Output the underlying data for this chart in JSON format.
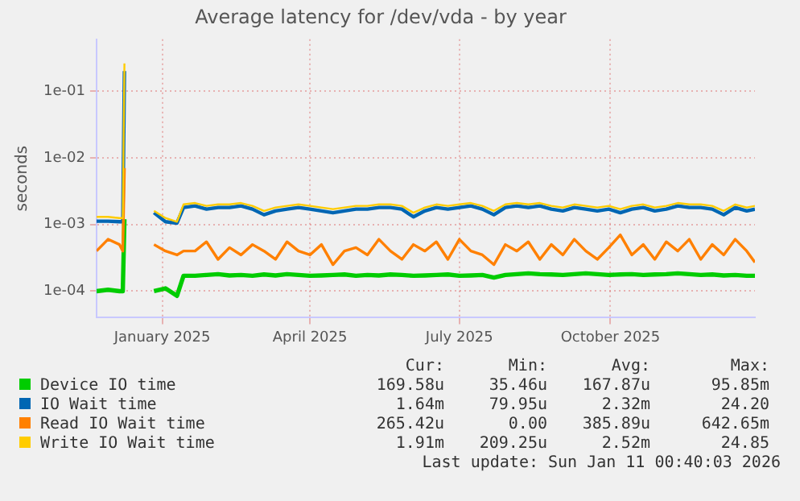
{
  "chart_data": {
    "type": "line",
    "title": "Average latency for /dev/vda - by year",
    "ylabel": "seconds",
    "log": true,
    "grid": true,
    "legend": "bottom",
    "marker": "none",
    "line_style": "solid",
    "xlim": [
      "2024-11-22",
      "2025-12-28"
    ],
    "xticks": [
      {
        "value": "2025-01-01",
        "label": "January 2025"
      },
      {
        "value": "2025-04-01",
        "label": "April 2025"
      },
      {
        "value": "2025-07-01",
        "label": "July 2025"
      },
      {
        "value": "2025-10-01",
        "label": "October 2025"
      }
    ],
    "ylim": [
      4e-05,
      0.6
    ],
    "yticks": [
      {
        "value": 0.0001,
        "label": "1e-04"
      },
      {
        "value": 0.001,
        "label": "1e-03"
      },
      {
        "value": 0.01,
        "label": "1e-02"
      },
      {
        "value": 0.1,
        "label": "1e-01"
      }
    ],
    "x": [
      "2024-11-22",
      "2024-11-29",
      "2024-12-06",
      "2024-12-08",
      "2024-12-09",
      "2024-12-18",
      "2024-12-27",
      "2025-01-03",
      "2025-01-10",
      "2025-01-14",
      "2025-01-21",
      "2025-01-28",
      "2025-02-04",
      "2025-02-11",
      "2025-02-18",
      "2025-02-25",
      "2025-03-04",
      "2025-03-11",
      "2025-03-18",
      "2025-03-25",
      "2025-04-01",
      "2025-04-08",
      "2025-04-15",
      "2025-04-22",
      "2025-04-29",
      "2025-05-06",
      "2025-05-13",
      "2025-05-20",
      "2025-05-27",
      "2025-06-03",
      "2025-06-10",
      "2025-06-17",
      "2025-06-24",
      "2025-07-01",
      "2025-07-08",
      "2025-07-15",
      "2025-07-22",
      "2025-07-29",
      "2025-08-05",
      "2025-08-12",
      "2025-08-19",
      "2025-08-26",
      "2025-09-02",
      "2025-09-09",
      "2025-09-16",
      "2025-09-23",
      "2025-09-30",
      "2025-10-07",
      "2025-10-14",
      "2025-10-21",
      "2025-10-28",
      "2025-11-04",
      "2025-11-11",
      "2025-11-18",
      "2025-11-25",
      "2025-12-02",
      "2025-12-09",
      "2025-12-16",
      "2025-12-23",
      "2025-12-28"
    ],
    "series": [
      {
        "name": "Device IO time",
        "color": "#00cc00",
        "values": [
          0.0001,
          0.000105,
          0.0001,
          0.0001,
          0.0012,
          null,
          0.0001,
          0.00011,
          8.5e-05,
          0.00017,
          0.00017,
          0.000175,
          0.00018,
          0.000172,
          0.000175,
          0.00017,
          0.000178,
          0.000172,
          0.00018,
          0.000175,
          0.00017,
          0.000172,
          0.000175,
          0.000178,
          0.00017,
          0.000175,
          0.000172,
          0.000178,
          0.000175,
          0.00017,
          0.000172,
          0.000175,
          0.000178,
          0.00017,
          0.000172,
          0.000175,
          0.00016,
          0.000175,
          0.00018,
          0.000185,
          0.00018,
          0.000178,
          0.000175,
          0.00018,
          0.000185,
          0.00018,
          0.000175,
          0.000178,
          0.00018,
          0.000175,
          0.000178,
          0.00018,
          0.000185,
          0.00018,
          0.000175,
          0.000178,
          0.000172,
          0.000175,
          0.00017,
          0.00017
        ]
      },
      {
        "name": "IO Wait time",
        "color": "#0066b3",
        "values": [
          0.00112,
          0.00112,
          0.0011,
          0.0011,
          0.2,
          null,
          0.0015,
          0.0011,
          0.00105,
          0.0018,
          0.0019,
          0.0017,
          0.0018,
          0.0018,
          0.0019,
          0.0017,
          0.0014,
          0.0016,
          0.0017,
          0.0018,
          0.0017,
          0.0016,
          0.0015,
          0.0016,
          0.0017,
          0.0017,
          0.0018,
          0.0018,
          0.0017,
          0.0013,
          0.0016,
          0.0018,
          0.0017,
          0.0018,
          0.0019,
          0.0017,
          0.0014,
          0.0018,
          0.0019,
          0.0018,
          0.0019,
          0.0017,
          0.0016,
          0.0018,
          0.0017,
          0.0016,
          0.0017,
          0.0015,
          0.0017,
          0.0018,
          0.0016,
          0.0017,
          0.0019,
          0.0018,
          0.0018,
          0.0017,
          0.0014,
          0.0018,
          0.0016,
          0.0017
        ]
      },
      {
        "name": "Read IO Wait time",
        "color": "#ff8000",
        "values": [
          0.0004,
          0.0006,
          0.0005,
          0.0004,
          0.007,
          null,
          0.0005,
          0.0004,
          0.00035,
          0.0004,
          0.0004,
          0.00055,
          0.0003,
          0.00045,
          0.00035,
          0.0005,
          0.0004,
          0.0003,
          0.00055,
          0.0004,
          0.00035,
          0.0005,
          0.00025,
          0.0004,
          0.00045,
          0.00035,
          0.0006,
          0.0004,
          0.0003,
          0.0005,
          0.0004,
          0.00055,
          0.0003,
          0.0006,
          0.0004,
          0.00035,
          0.00025,
          0.0005,
          0.0004,
          0.00055,
          0.0003,
          0.0005,
          0.00035,
          0.0006,
          0.0004,
          0.0003,
          0.00045,
          0.0007,
          0.00035,
          0.0005,
          0.0003,
          0.00055,
          0.0004,
          0.0006,
          0.0003,
          0.0005,
          0.00035,
          0.0006,
          0.0004,
          0.00027
        ]
      },
      {
        "name": "Write IO Wait time",
        "color": "#ffcc00",
        "values": [
          0.0013,
          0.0013,
          0.00125,
          0.00125,
          0.26,
          null,
          0.0016,
          0.00125,
          0.0011,
          0.002,
          0.0021,
          0.0019,
          0.002,
          0.002,
          0.0021,
          0.0019,
          0.0016,
          0.0018,
          0.0019,
          0.002,
          0.0019,
          0.0018,
          0.0017,
          0.0018,
          0.0019,
          0.0019,
          0.002,
          0.002,
          0.0019,
          0.0015,
          0.0018,
          0.002,
          0.0019,
          0.002,
          0.0021,
          0.0019,
          0.0016,
          0.002,
          0.0021,
          0.002,
          0.0021,
          0.0019,
          0.0018,
          0.002,
          0.0019,
          0.0018,
          0.0019,
          0.0017,
          0.0019,
          0.002,
          0.0018,
          0.0019,
          0.0021,
          0.002,
          0.002,
          0.0019,
          0.0016,
          0.002,
          0.0018,
          0.0019
        ]
      }
    ],
    "annotations": [
      "Cur:",
      "Min:",
      "Avg:",
      "Max:",
      "169.58u",
      "35.46u",
      "167.87u",
      "95.85m",
      "1.64m",
      "79.95u",
      "2.32m",
      "24.20",
      "265.42u",
      "0.00",
      "385.89u",
      "642.65m",
      "1.91m",
      "209.25u",
      "2.52m",
      "24.85",
      "Last update: Sun Jan 11 00:40:03 2026"
    ]
  }
}
